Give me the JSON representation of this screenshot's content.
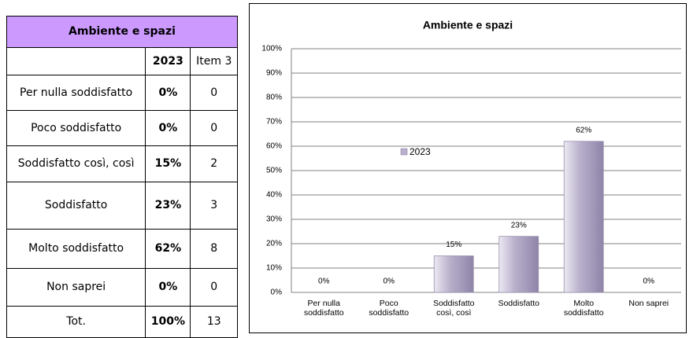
{
  "table": {
    "title": "Ambiente e spazi",
    "columns": [
      "2023",
      "Item 3"
    ],
    "rows": [
      [
        "Per nulla soddisfatto",
        "0%",
        "0"
      ],
      [
        "Poco soddisfatto",
        "0%",
        "0"
      ],
      [
        "Soddisfatto così, così",
        "15%",
        "2"
      ],
      [
        "Soddisfatto",
        "23%",
        "3"
      ],
      [
        "Molto soddisfatto",
        "62%",
        "8"
      ],
      [
        "Non saprei",
        "0%",
        "0"
      ],
      [
        "Tot.",
        "100%",
        "13"
      ]
    ]
  },
  "chart_data": {
    "type": "bar",
    "title": "Ambiente e spazi",
    "categories": [
      "Per nulla soddisfatto",
      "Poco soddisfatto",
      "Soddisfatto così, così",
      "Soddisfatto",
      "Molto soddisfatto",
      "Non saprei"
    ],
    "series": [
      {
        "name": "2023",
        "color": "#b9b0cc",
        "values": [
          0,
          0,
          15,
          23,
          62,
          0
        ],
        "value_labels": [
          "0%",
          "0%",
          "15%",
          "23%",
          "62%",
          "0%"
        ]
      }
    ],
    "ylim": [
      0,
      100
    ],
    "yticks": [
      {
        "value": 0,
        "label": "0%"
      },
      {
        "value": 10,
        "label": "10%"
      },
      {
        "value": 20,
        "label": "20%"
      },
      {
        "value": 30,
        "label": "30%"
      },
      {
        "value": 40,
        "label": "40%"
      },
      {
        "value": 50,
        "label": "50%"
      },
      {
        "value": 60,
        "label": "60%"
      },
      {
        "value": 70,
        "label": "70%"
      },
      {
        "value": 80,
        "label": "80%"
      },
      {
        "value": 90,
        "label": "90%"
      },
      {
        "value": 100,
        "label": "100%"
      }
    ],
    "grid": true
  }
}
